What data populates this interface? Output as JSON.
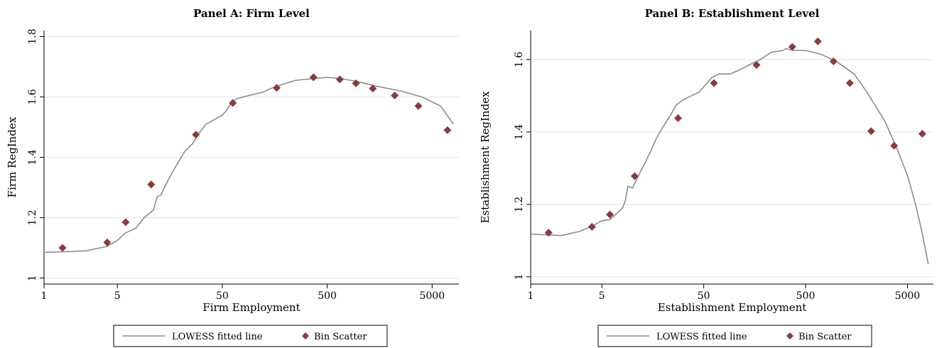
{
  "colors": {
    "line": "#8c8c8c",
    "marker": "#8b3a3e",
    "grid": "#e6e6e6",
    "axis": "#000000",
    "legend_border": "#000000"
  },
  "chart_data": [
    {
      "type": "scatter",
      "title": "Panel A: Firm Level",
      "xlabel": "Firm Employment",
      "ylabel": "Firm RegIndex",
      "x_scale": "log",
      "xlim": [
        1,
        9000
      ],
      "ylim": [
        0.98,
        1.82
      ],
      "x_ticks": [
        1,
        5,
        50,
        500,
        5000
      ],
      "x_tick_labels": [
        "1",
        "5",
        "50",
        "500",
        "5000"
      ],
      "y_ticks": [
        1,
        1.2,
        1.4,
        1.6,
        1.8
      ],
      "y_tick_labels": [
        "1",
        "1.2",
        "1.4",
        "1.6",
        "1.8"
      ],
      "grid": true,
      "legend_placement": "bottom",
      "legend": [
        "LOWESS fitted line",
        "Bin Scatter"
      ],
      "series": [
        {
          "name": "LOWESS fitted line",
          "kind": "line",
          "points": [
            [
              1,
              1.085
            ],
            [
              1.5,
              1.087
            ],
            [
              2.5,
              1.09
            ],
            [
              4,
              1.105
            ],
            [
              5,
              1.125
            ],
            [
              6,
              1.15
            ],
            [
              7.5,
              1.165
            ],
            [
              9,
              1.2
            ],
            [
              11,
              1.225
            ],
            [
              12,
              1.27
            ],
            [
              13,
              1.275
            ],
            [
              15,
              1.32
            ],
            [
              18,
              1.37
            ],
            [
              22,
              1.42
            ],
            [
              26,
              1.445
            ],
            [
              30,
              1.48
            ],
            [
              35,
              1.51
            ],
            [
              42,
              1.525
            ],
            [
              50,
              1.54
            ],
            [
              55,
              1.555
            ],
            [
              62,
              1.585
            ],
            [
              70,
              1.595
            ],
            [
              90,
              1.605
            ],
            [
              120,
              1.615
            ],
            [
              150,
              1.63
            ],
            [
              200,
              1.645
            ],
            [
              250,
              1.655
            ],
            [
              350,
              1.66
            ],
            [
              500,
              1.665
            ],
            [
              700,
              1.66
            ],
            [
              1000,
              1.65
            ],
            [
              1500,
              1.635
            ],
            [
              2500,
              1.62
            ],
            [
              4000,
              1.6
            ],
            [
              6000,
              1.57
            ],
            [
              8000,
              1.51
            ]
          ]
        },
        {
          "name": "Bin Scatter",
          "kind": "scatter",
          "points": [
            [
              1.5,
              1.1
            ],
            [
              4,
              1.118
            ],
            [
              6,
              1.185
            ],
            [
              10.5,
              1.31
            ],
            [
              28,
              1.475
            ],
            [
              63,
              1.58
            ],
            [
              165,
              1.63
            ],
            [
              370,
              1.665
            ],
            [
              660,
              1.658
            ],
            [
              940,
              1.645
            ],
            [
              1360,
              1.628
            ],
            [
              2200,
              1.605
            ],
            [
              3700,
              1.57
            ],
            [
              7000,
              1.49
            ]
          ]
        }
      ]
    },
    {
      "type": "scatter",
      "title": "Panel B: Establishment Level",
      "xlabel": "Establishment Employment",
      "ylabel": "Establishment RegIndex",
      "x_scale": "log",
      "xlim": [
        1,
        9000
      ],
      "ylim": [
        0.98,
        1.68
      ],
      "x_ticks": [
        1,
        5,
        50,
        500,
        5000
      ],
      "x_tick_labels": [
        "1",
        "5",
        "50",
        "500",
        "5000"
      ],
      "y_ticks": [
        1,
        1.2,
        1.4,
        1.6
      ],
      "y_tick_labels": [
        "1",
        "1.2",
        "1.4",
        "1.6"
      ],
      "grid": true,
      "legend_placement": "bottom",
      "legend": [
        "LOWESS fitted line",
        "Bin Scatter"
      ],
      "series": [
        {
          "name": "LOWESS fitted line",
          "kind": "line",
          "points": [
            [
              1,
              1.118
            ],
            [
              2,
              1.114
            ],
            [
              3,
              1.125
            ],
            [
              4,
              1.14
            ],
            [
              5,
              1.155
            ],
            [
              6,
              1.158
            ],
            [
              7,
              1.175
            ],
            [
              8,
              1.19
            ],
            [
              8.5,
              1.21
            ],
            [
              9,
              1.25
            ],
            [
              10,
              1.245
            ],
            [
              11,
              1.27
            ],
            [
              13,
              1.31
            ],
            [
              15,
              1.345
            ],
            [
              17,
              1.38
            ],
            [
              20,
              1.415
            ],
            [
              24,
              1.45
            ],
            [
              27,
              1.475
            ],
            [
              32,
              1.49
            ],
            [
              38,
              1.5
            ],
            [
              45,
              1.51
            ],
            [
              52,
              1.53
            ],
            [
              60,
              1.55
            ],
            [
              70,
              1.56
            ],
            [
              90,
              1.56
            ],
            [
              110,
              1.57
            ],
            [
              140,
              1.585
            ],
            [
              180,
              1.6
            ],
            [
              230,
              1.62
            ],
            [
              300,
              1.625
            ],
            [
              320,
              1.63
            ],
            [
              380,
              1.625
            ],
            [
              500,
              1.625
            ],
            [
              700,
              1.615
            ],
            [
              1000,
              1.595
            ],
            [
              1500,
              1.56
            ],
            [
              2000,
              1.51
            ],
            [
              3000,
              1.43
            ],
            [
              4000,
              1.35
            ],
            [
              5000,
              1.28
            ],
            [
              6000,
              1.2
            ],
            [
              7000,
              1.12
            ],
            [
              8000,
              1.035
            ]
          ]
        },
        {
          "name": "Bin Scatter",
          "kind": "scatter",
          "points": [
            [
              1.5,
              1.122
            ],
            [
              4,
              1.138
            ],
            [
              6,
              1.172
            ],
            [
              10.5,
              1.278
            ],
            [
              28,
              1.438
            ],
            [
              63,
              1.535
            ],
            [
              165,
              1.585
            ],
            [
              370,
              1.635
            ],
            [
              660,
              1.65
            ],
            [
              940,
              1.595
            ],
            [
              1360,
              1.535
            ],
            [
              2200,
              1.402
            ],
            [
              3700,
              1.362
            ],
            [
              7000,
              1.395
            ]
          ]
        }
      ]
    }
  ]
}
